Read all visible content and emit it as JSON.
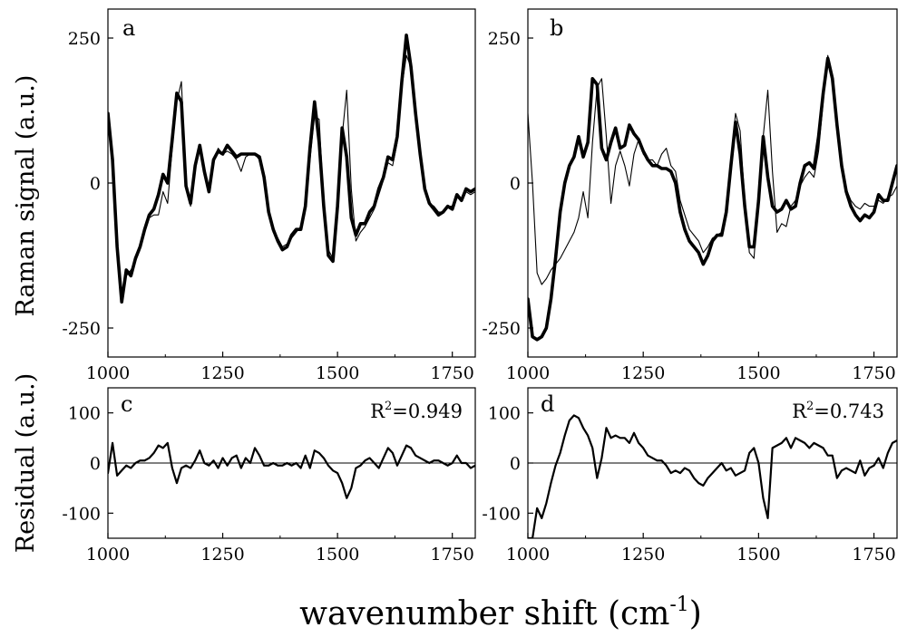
{
  "xlabel": "wavenumber shift (cm",
  "xlabel_sup": "-1",
  "xlabel_close": ")",
  "ylabel_top": "Raman signal (a.u.)",
  "ylabel_bottom": "Residual (a.u.)",
  "chart_data": [
    {
      "type": "line",
      "panel": "a",
      "xlim": [
        1000,
        1800
      ],
      "ylim": [
        -300,
        300
      ],
      "xticks": [
        1000,
        1250,
        1500,
        1750
      ],
      "yticks": [
        250,
        0,
        -250
      ],
      "x": [
        1000,
        1010,
        1020,
        1030,
        1040,
        1050,
        1060,
        1070,
        1080,
        1090,
        1100,
        1110,
        1120,
        1130,
        1140,
        1150,
        1160,
        1170,
        1180,
        1190,
        1200,
        1210,
        1220,
        1230,
        1240,
        1250,
        1260,
        1270,
        1280,
        1290,
        1300,
        1310,
        1320,
        1330,
        1340,
        1350,
        1360,
        1370,
        1380,
        1390,
        1400,
        1410,
        1420,
        1430,
        1440,
        1450,
        1460,
        1470,
        1480,
        1490,
        1500,
        1510,
        1520,
        1530,
        1540,
        1550,
        1560,
        1570,
        1580,
        1590,
        1600,
        1610,
        1620,
        1630,
        1640,
        1650,
        1660,
        1670,
        1680,
        1690,
        1700,
        1710,
        1720,
        1730,
        1740,
        1750,
        1760,
        1770,
        1780,
        1790,
        1800
      ],
      "series": [
        {
          "style": "thick",
          "values": [
            120,
            40,
            -110,
            -205,
            -150,
            -160,
            -130,
            -110,
            -80,
            -55,
            -45,
            -20,
            15,
            0,
            75,
            155,
            140,
            -5,
            -35,
            30,
            65,
            20,
            -15,
            40,
            55,
            50,
            65,
            55,
            45,
            50,
            50,
            50,
            50,
            45,
            10,
            -50,
            -80,
            -100,
            -115,
            -110,
            -90,
            -80,
            -80,
            -40,
            60,
            140,
            70,
            -40,
            -125,
            -135,
            -40,
            95,
            45,
            -60,
            -90,
            -70,
            -70,
            -50,
            -40,
            -10,
            10,
            45,
            40,
            80,
            175,
            255,
            200,
            120,
            50,
            -10,
            -35,
            -45,
            -55,
            -50,
            -40,
            -45,
            -20,
            -30,
            -10,
            -15,
            -10
          ]
        },
        {
          "style": "thin",
          "values": [
            120,
            30,
            -100,
            -190,
            -160,
            -150,
            -135,
            -115,
            -85,
            -60,
            -55,
            -55,
            -15,
            -35,
            60,
            140,
            175,
            0,
            -40,
            25,
            60,
            25,
            -10,
            35,
            60,
            50,
            55,
            50,
            40,
            20,
            45,
            50,
            50,
            40,
            5,
            -55,
            -85,
            -95,
            -110,
            -105,
            -95,
            -85,
            -75,
            -45,
            40,
            115,
            110,
            -35,
            -115,
            -130,
            -20,
            80,
            160,
            -10,
            -100,
            -85,
            -75,
            -60,
            -45,
            -20,
            5,
            35,
            30,
            70,
            165,
            220,
            200,
            110,
            40,
            -15,
            -35,
            -40,
            -50,
            -50,
            -40,
            -40,
            -25,
            -30,
            -15,
            -20,
            -15
          ]
        }
      ]
    },
    {
      "type": "line",
      "panel": "b",
      "xlim": [
        1000,
        1800
      ],
      "ylim": [
        -300,
        300
      ],
      "xticks": [
        1000,
        1250,
        1500,
        1750
      ],
      "yticks": [
        250,
        0,
        -250
      ],
      "x": [
        1000,
        1010,
        1020,
        1030,
        1040,
        1050,
        1060,
        1070,
        1080,
        1090,
        1100,
        1110,
        1120,
        1130,
        1140,
        1150,
        1160,
        1170,
        1180,
        1190,
        1200,
        1210,
        1220,
        1230,
        1240,
        1250,
        1260,
        1270,
        1280,
        1290,
        1300,
        1310,
        1320,
        1330,
        1340,
        1350,
        1360,
        1370,
        1380,
        1390,
        1400,
        1410,
        1420,
        1430,
        1440,
        1450,
        1460,
        1470,
        1480,
        1490,
        1500,
        1510,
        1520,
        1530,
        1540,
        1550,
        1560,
        1570,
        1580,
        1590,
        1600,
        1610,
        1620,
        1630,
        1640,
        1650,
        1660,
        1670,
        1680,
        1690,
        1700,
        1710,
        1720,
        1730,
        1740,
        1750,
        1760,
        1770,
        1780,
        1790,
        1800
      ],
      "series": [
        {
          "style": "thick",
          "values": [
            -200,
            -265,
            -270,
            -265,
            -250,
            -200,
            -130,
            -50,
            0,
            30,
            45,
            80,
            45,
            70,
            180,
            170,
            60,
            40,
            70,
            95,
            60,
            65,
            100,
            85,
            75,
            55,
            40,
            30,
            30,
            25,
            25,
            20,
            0,
            -50,
            -80,
            -100,
            -110,
            -120,
            -140,
            -125,
            -100,
            -90,
            -90,
            -50,
            30,
            105,
            50,
            -40,
            -110,
            -110,
            -30,
            80,
            10,
            -40,
            -50,
            -45,
            -30,
            -45,
            -40,
            0,
            30,
            35,
            25,
            80,
            155,
            215,
            180,
            100,
            30,
            -15,
            -40,
            -55,
            -65,
            -55,
            -60,
            -50,
            -20,
            -30,
            -30,
            0,
            30
          ]
        },
        {
          "style": "thin",
          "values": [
            120,
            0,
            -155,
            -175,
            -165,
            -150,
            -140,
            -130,
            -115,
            -100,
            -85,
            -60,
            -15,
            -60,
            70,
            165,
            180,
            80,
            -35,
            30,
            55,
            30,
            -5,
            50,
            75,
            50,
            40,
            40,
            30,
            50,
            60,
            30,
            20,
            -30,
            -55,
            -80,
            -90,
            -100,
            -120,
            -110,
            -95,
            -90,
            -85,
            -45,
            40,
            120,
            90,
            -30,
            -120,
            -130,
            -20,
            80,
            160,
            20,
            -85,
            -70,
            -75,
            -40,
            -30,
            -5,
            10,
            20,
            10,
            55,
            140,
            220,
            185,
            110,
            40,
            -10,
            -30,
            -40,
            -45,
            -35,
            -40,
            -40,
            -30,
            -35,
            -25,
            -20,
            -5
          ]
        }
      ]
    },
    {
      "type": "line",
      "panel": "c",
      "annotation": "R",
      "annotation_sup": "2",
      "annotation_value": "=0.949",
      "xlim": [
        1000,
        1800
      ],
      "ylim": [
        -150,
        150
      ],
      "xticks": [
        1000,
        1250,
        1500,
        1750
      ],
      "yticks": [
        100,
        0,
        -100
      ],
      "x": [
        1000,
        1010,
        1020,
        1030,
        1040,
        1050,
        1060,
        1070,
        1080,
        1090,
        1100,
        1110,
        1120,
        1130,
        1140,
        1150,
        1160,
        1170,
        1180,
        1190,
        1200,
        1210,
        1220,
        1230,
        1240,
        1250,
        1260,
        1270,
        1280,
        1290,
        1300,
        1310,
        1320,
        1330,
        1340,
        1350,
        1360,
        1370,
        1380,
        1390,
        1400,
        1410,
        1420,
        1430,
        1440,
        1450,
        1460,
        1470,
        1480,
        1490,
        1500,
        1510,
        1520,
        1530,
        1540,
        1550,
        1560,
        1570,
        1580,
        1590,
        1600,
        1610,
        1620,
        1630,
        1640,
        1650,
        1660,
        1670,
        1680,
        1690,
        1700,
        1710,
        1720,
        1730,
        1740,
        1750,
        1760,
        1770,
        1780,
        1790,
        1800
      ],
      "series": [
        {
          "style": "residual",
          "values": [
            -20,
            40,
            -25,
            -15,
            -5,
            -10,
            0,
            5,
            5,
            10,
            20,
            35,
            30,
            40,
            -10,
            -40,
            -10,
            -5,
            -10,
            5,
            25,
            0,
            -5,
            5,
            -10,
            10,
            -5,
            10,
            15,
            -10,
            10,
            0,
            30,
            15,
            -5,
            -5,
            0,
            -5,
            -5,
            0,
            -5,
            0,
            -10,
            15,
            -10,
            25,
            20,
            10,
            -5,
            -15,
            -20,
            -40,
            -70,
            -50,
            -10,
            -5,
            5,
            10,
            0,
            -10,
            10,
            30,
            20,
            -5,
            15,
            35,
            30,
            15,
            10,
            5,
            0,
            5,
            5,
            0,
            -5,
            0,
            15,
            0,
            0,
            -10,
            -5
          ]
        }
      ]
    },
    {
      "type": "line",
      "panel": "d",
      "annotation": "R",
      "annotation_sup": "2",
      "annotation_value": "=0.743",
      "xlim": [
        1000,
        1800
      ],
      "ylim": [
        -150,
        150
      ],
      "xticks": [
        1000,
        1250,
        1500,
        1750
      ],
      "yticks": [
        100,
        0,
        -100
      ],
      "x": [
        1000,
        1010,
        1020,
        1030,
        1040,
        1050,
        1060,
        1070,
        1080,
        1090,
        1100,
        1110,
        1120,
        1130,
        1140,
        1150,
        1160,
        1170,
        1180,
        1190,
        1200,
        1210,
        1220,
        1230,
        1240,
        1250,
        1260,
        1270,
        1280,
        1290,
        1300,
        1310,
        1320,
        1330,
        1340,
        1350,
        1360,
        1370,
        1380,
        1390,
        1400,
        1410,
        1420,
        1430,
        1440,
        1450,
        1460,
        1470,
        1480,
        1490,
        1500,
        1510,
        1520,
        1530,
        1540,
        1550,
        1560,
        1570,
        1580,
        1590,
        1600,
        1610,
        1620,
        1630,
        1640,
        1650,
        1660,
        1670,
        1680,
        1690,
        1700,
        1710,
        1720,
        1730,
        1740,
        1750,
        1760,
        1770,
        1780,
        1790,
        1800
      ],
      "series": [
        {
          "style": "residual",
          "values": [
            -150,
            -150,
            -90,
            -110,
            -80,
            -40,
            -5,
            20,
            55,
            85,
            95,
            90,
            70,
            55,
            30,
            -30,
            10,
            70,
            50,
            55,
            50,
            50,
            40,
            60,
            40,
            30,
            15,
            10,
            5,
            5,
            -5,
            -20,
            -15,
            -20,
            -10,
            -15,
            -30,
            -40,
            -45,
            -30,
            -20,
            -10,
            0,
            -15,
            -10,
            -25,
            -20,
            -15,
            20,
            30,
            0,
            -70,
            -110,
            30,
            35,
            40,
            50,
            30,
            50,
            45,
            40,
            30,
            40,
            35,
            30,
            15,
            15,
            -30,
            -15,
            -10,
            -15,
            -20,
            5,
            -25,
            -10,
            -5,
            10,
            -10,
            20,
            40,
            45
          ]
        }
      ]
    }
  ]
}
